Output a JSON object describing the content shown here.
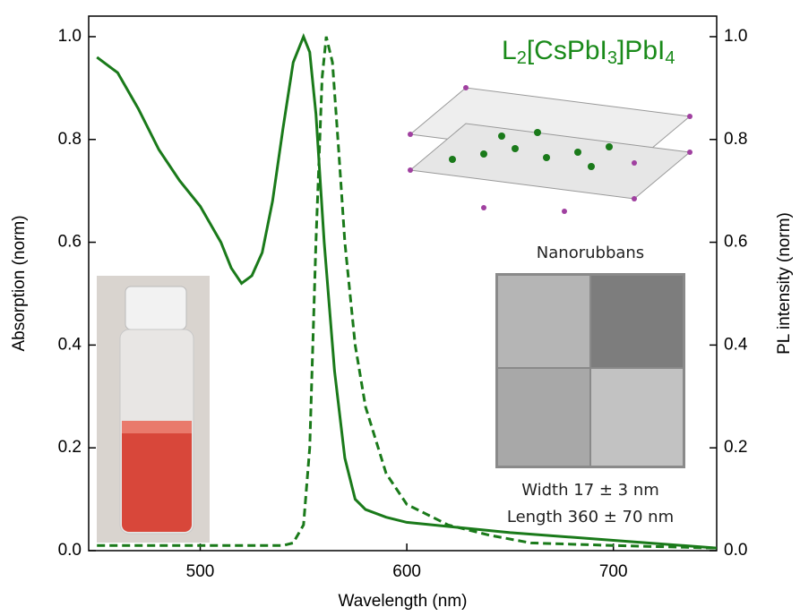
{
  "chart_data": {
    "type": "line",
    "xlabel": "Wavelength (nm)",
    "ylabel": "Absorption (norm)",
    "y2label": "PL intensity (norm)",
    "formula": [
      "L",
      "2",
      "[CsPbI",
      "3",
      "]PbI",
      "4"
    ],
    "annotations": [
      "Nanorubbans",
      "Width 17 ± 3 nm",
      "Length 360 ± 70 nm"
    ],
    "xlim": [
      446,
      750
    ],
    "xticks": [
      500,
      600,
      700
    ],
    "ylim": [
      0,
      1.04
    ],
    "yticks": [
      {
        "value": 0,
        "label": "0.0"
      },
      0.2,
      0.4,
      0.6,
      0.8,
      {
        "value": 1,
        "label": "1.0"
      }
    ],
    "y2lim": [
      0,
      1.04
    ],
    "y2ticks": [
      {
        "value": 0,
        "label": "0.0"
      },
      0.2,
      0.4,
      0.6,
      0.8,
      {
        "value": 1,
        "label": "1.0"
      }
    ],
    "series": [
      {
        "color": "#1a7a1a",
        "dashed": false,
        "x": [
          450,
          460,
          470,
          480,
          490,
          500,
          510,
          515,
          520,
          525,
          530,
          535,
          540,
          545,
          550,
          553,
          556,
          560,
          565,
          570,
          575,
          580,
          590,
          600,
          625,
          650,
          700,
          750
        ],
        "values": [
          0.96,
          0.93,
          0.86,
          0.78,
          0.72,
          0.67,
          0.6,
          0.55,
          0.52,
          0.535,
          0.58,
          0.68,
          0.82,
          0.95,
          1.0,
          0.97,
          0.85,
          0.6,
          0.35,
          0.18,
          0.1,
          0.08,
          0.065,
          0.055,
          0.045,
          0.035,
          0.02,
          0.005
        ]
      },
      {
        "color": "#1a7a1a",
        "dashed": true,
        "axis": "y2",
        "x": [
          450,
          500,
          540,
          545,
          550,
          553,
          556,
          559,
          561,
          564,
          567,
          570,
          575,
          580,
          590,
          600,
          620,
          640,
          660,
          700,
          750
        ],
        "values": [
          0.01,
          0.01,
          0.01,
          0.015,
          0.05,
          0.2,
          0.6,
          0.92,
          1.0,
          0.95,
          0.78,
          0.6,
          0.4,
          0.28,
          0.15,
          0.09,
          0.05,
          0.03,
          0.015,
          0.01,
          0.005
        ]
      }
    ]
  }
}
